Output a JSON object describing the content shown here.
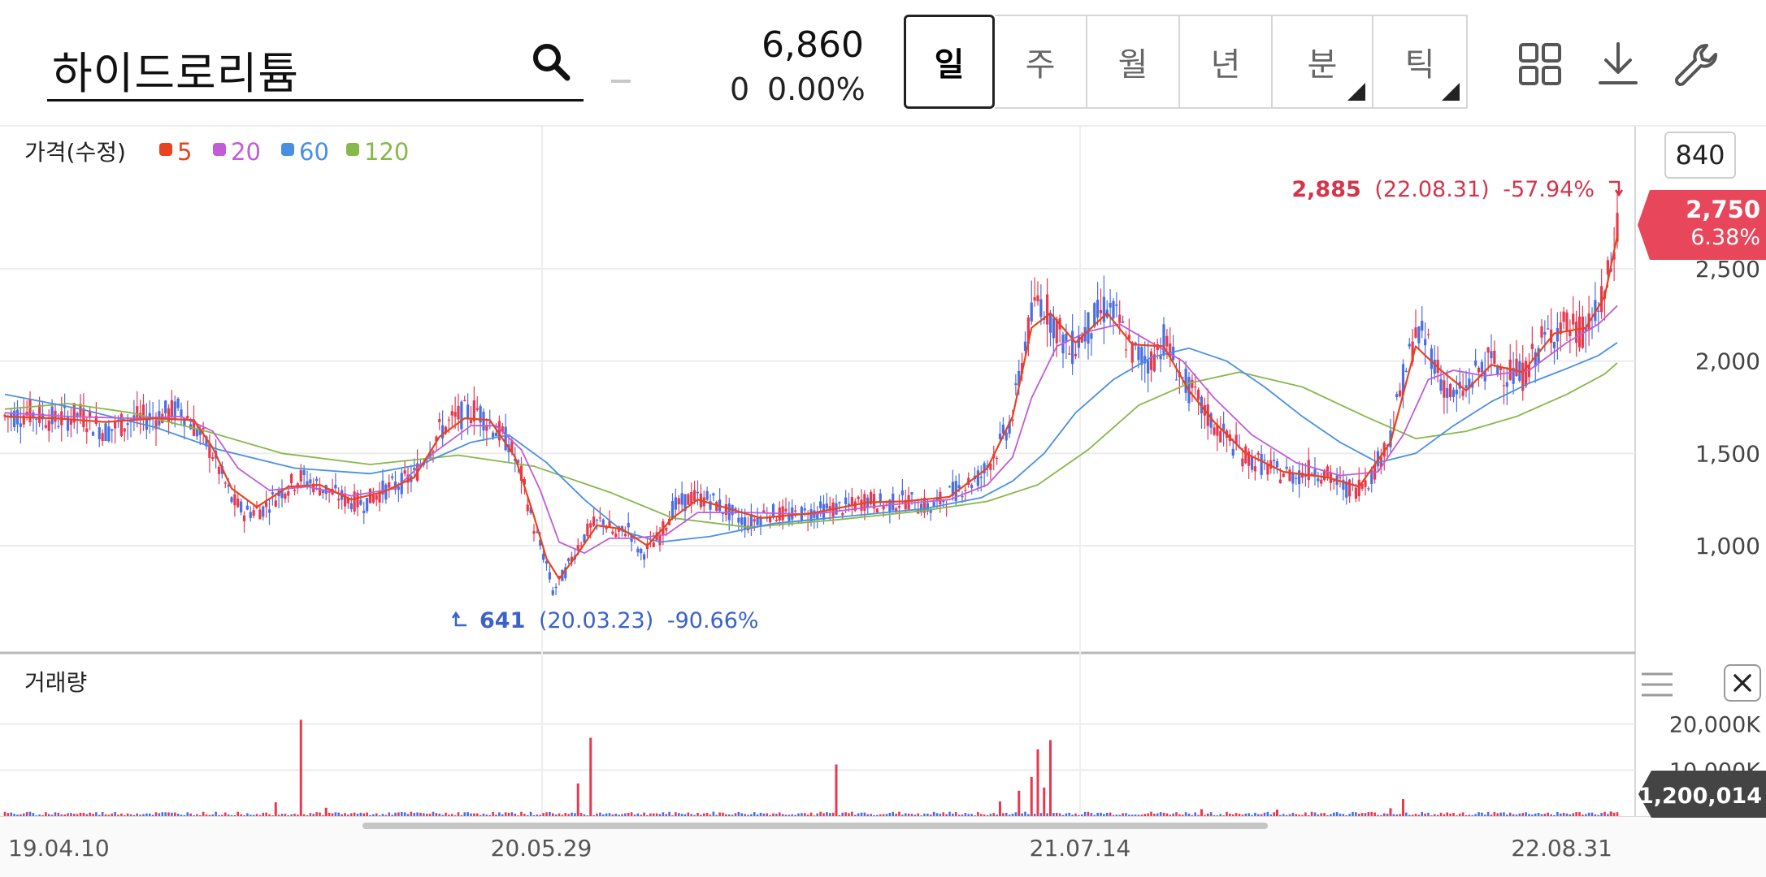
{
  "search": {
    "query": "하이드로리튬"
  },
  "quote": {
    "price": "6,860",
    "change": "0",
    "change_pct": "0.00%"
  },
  "periods": [
    {
      "label": "일",
      "active": true,
      "corner": false
    },
    {
      "label": "주",
      "active": false,
      "corner": false
    },
    {
      "label": "월",
      "active": false,
      "corner": false
    },
    {
      "label": "년",
      "active": false,
      "corner": false
    },
    {
      "label": "분",
      "active": false,
      "corner": true
    },
    {
      "label": "틱",
      "active": false,
      "corner": true
    }
  ],
  "toolbar": {
    "icons": [
      "grid-icon",
      "download-icon",
      "wrench-icon"
    ]
  },
  "overlay_button": {
    "label": "840"
  },
  "colors": {
    "up": "#e8384f",
    "down": "#4a6fe0",
    "ma5": "#e8431e",
    "ma20": "#c15bd6",
    "ma60": "#4a90e2",
    "ma120": "#86b84a",
    "price_tag": "#e8465a",
    "volume_tag": "#444444"
  },
  "chart_data": {
    "type": "candlestick",
    "price_panel": {
      "title": "가격(수정)",
      "y_ticks": [
        "2,500",
        "2,000",
        "1,500",
        "1,000"
      ],
      "ylim": [
        700,
        2950
      ],
      "legend": [
        {
          "name": "5",
          "color": "#e8431e"
        },
        {
          "name": "20",
          "color": "#c15bd6"
        },
        {
          "name": "60",
          "color": "#4a90e2"
        },
        {
          "name": "120",
          "color": "#86b84a"
        }
      ],
      "current_price": {
        "value": "2,750",
        "pct": "6.38%"
      },
      "high_annotation": {
        "value": "2,885",
        "date": "(22.08.31)",
        "pct": "-57.94%"
      },
      "low_annotation": {
        "value": "641",
        "date": "(20.03.23)",
        "pct": "-90.66%"
      },
      "close_path_points": [
        [
          0,
          1700
        ],
        [
          4,
          1720
        ],
        [
          8,
          1680
        ],
        [
          12,
          1710
        ],
        [
          16,
          1620
        ],
        [
          20,
          1680
        ],
        [
          24,
          1700
        ],
        [
          28,
          1740
        ],
        [
          30,
          1650
        ],
        [
          33,
          1500
        ],
        [
          36,
          1250
        ],
        [
          38,
          1180
        ],
        [
          41,
          1200
        ],
        [
          44,
          1300
        ],
        [
          47,
          1370
        ],
        [
          50,
          1320
        ],
        [
          54,
          1250
        ],
        [
          57,
          1230
        ],
        [
          60,
          1300
        ],
        [
          63,
          1340
        ],
        [
          65,
          1380
        ],
        [
          67,
          1500
        ],
        [
          69,
          1620
        ],
        [
          72,
          1700
        ],
        [
          75,
          1740
        ],
        [
          77,
          1660
        ],
        [
          80,
          1560
        ],
        [
          82,
          1380
        ],
        [
          84,
          1100
        ],
        [
          86,
          900
        ],
        [
          87,
          750
        ],
        [
          89,
          860
        ],
        [
          91,
          1000
        ],
        [
          93,
          1100
        ],
        [
          95,
          1140
        ],
        [
          97,
          1050
        ],
        [
          99,
          1100
        ],
        [
          101,
          950
        ],
        [
          104,
          1050
        ],
        [
          106,
          1200
        ],
        [
          109,
          1260
        ],
        [
          112,
          1250
        ],
        [
          115,
          1180
        ],
        [
          118,
          1120
        ],
        [
          121,
          1180
        ],
        [
          125,
          1160
        ],
        [
          128,
          1180
        ],
        [
          131,
          1200
        ],
        [
          134,
          1210
        ],
        [
          137,
          1250
        ],
        [
          140,
          1220
        ],
        [
          143,
          1250
        ],
        [
          147,
          1200
        ],
        [
          150,
          1280
        ],
        [
          155,
          1380
        ],
        [
          158,
          1550
        ],
        [
          160,
          1700
        ],
        [
          162,
          2100
        ],
        [
          164,
          2350
        ],
        [
          166,
          2250
        ],
        [
          169,
          2050
        ],
        [
          172,
          2180
        ],
        [
          175,
          2300
        ],
        [
          177,
          2200
        ],
        [
          179,
          2050
        ],
        [
          182,
          2000
        ],
        [
          184,
          2120
        ],
        [
          187,
          1900
        ],
        [
          190,
          1750
        ],
        [
          192,
          1650
        ],
        [
          195,
          1550
        ],
        [
          197,
          1480
        ],
        [
          199,
          1450
        ],
        [
          202,
          1400
        ],
        [
          205,
          1380
        ],
        [
          208,
          1420
        ],
        [
          211,
          1350
        ],
        [
          214,
          1300
        ],
        [
          217,
          1380
        ],
        [
          220,
          1600
        ],
        [
          222,
          1900
        ],
        [
          224,
          2150
        ],
        [
          226,
          2100
        ],
        [
          228,
          1900
        ],
        [
          230,
          1800
        ],
        [
          232,
          1850
        ],
        [
          234,
          1950
        ],
        [
          236,
          2000
        ],
        [
          238,
          1950
        ],
        [
          241,
          1920
        ],
        [
          244,
          2100
        ],
        [
          247,
          2200
        ],
        [
          250,
          2150
        ],
        [
          253,
          2250
        ],
        [
          255,
          2500
        ],
        [
          256,
          2750
        ]
      ],
      "ma5": [
        [
          0,
          1700
        ],
        [
          8,
          1690
        ],
        [
          16,
          1670
        ],
        [
          24,
          1690
        ],
        [
          30,
          1680
        ],
        [
          33,
          1530
        ],
        [
          36,
          1310
        ],
        [
          40,
          1210
        ],
        [
          45,
          1320
        ],
        [
          50,
          1330
        ],
        [
          55,
          1250
        ],
        [
          60,
          1290
        ],
        [
          65,
          1370
        ],
        [
          69,
          1590
        ],
        [
          73,
          1690
        ],
        [
          77,
          1680
        ],
        [
          81,
          1480
        ],
        [
          84,
          1160
        ],
        [
          86,
          930
        ],
        [
          88,
          820
        ],
        [
          91,
          960
        ],
        [
          94,
          1110
        ],
        [
          98,
          1090
        ],
        [
          102,
          1000
        ],
        [
          106,
          1150
        ],
        [
          110,
          1250
        ],
        [
          115,
          1200
        ],
        [
          120,
          1150
        ],
        [
          128,
          1175
        ],
        [
          137,
          1235
        ],
        [
          143,
          1240
        ],
        [
          150,
          1265
        ],
        [
          156,
          1420
        ],
        [
          160,
          1700
        ],
        [
          163,
          2180
        ],
        [
          166,
          2260
        ],
        [
          170,
          2100
        ],
        [
          175,
          2260
        ],
        [
          179,
          2090
        ],
        [
          184,
          2080
        ],
        [
          188,
          1840
        ],
        [
          192,
          1670
        ],
        [
          197,
          1500
        ],
        [
          203,
          1400
        ],
        [
          210,
          1370
        ],
        [
          215,
          1320
        ],
        [
          220,
          1560
        ],
        [
          224,
          2080
        ],
        [
          228,
          1950
        ],
        [
          232,
          1840
        ],
        [
          236,
          1980
        ],
        [
          241,
          1940
        ],
        [
          246,
          2150
        ],
        [
          251,
          2180
        ],
        [
          254,
          2350
        ],
        [
          256,
          2680
        ]
      ],
      "ma20": [
        [
          0,
          1720
        ],
        [
          10,
          1700
        ],
        [
          20,
          1690
        ],
        [
          28,
          1700
        ],
        [
          33,
          1620
        ],
        [
          37,
          1420
        ],
        [
          42,
          1300
        ],
        [
          48,
          1320
        ],
        [
          55,
          1270
        ],
        [
          62,
          1310
        ],
        [
          68,
          1500
        ],
        [
          74,
          1650
        ],
        [
          78,
          1650
        ],
        [
          82,
          1520
        ],
        [
          85,
          1300
        ],
        [
          88,
          1020
        ],
        [
          92,
          960
        ],
        [
          96,
          1040
        ],
        [
          100,
          1040
        ],
        [
          105,
          1060
        ],
        [
          110,
          1180
        ],
        [
          118,
          1180
        ],
        [
          128,
          1170
        ],
        [
          140,
          1220
        ],
        [
          150,
          1250
        ],
        [
          156,
          1330
        ],
        [
          160,
          1480
        ],
        [
          163,
          1800
        ],
        [
          167,
          2080
        ],
        [
          172,
          2160
        ],
        [
          177,
          2200
        ],
        [
          182,
          2100
        ],
        [
          187,
          2000
        ],
        [
          192,
          1800
        ],
        [
          198,
          1600
        ],
        [
          205,
          1450
        ],
        [
          212,
          1380
        ],
        [
          218,
          1400
        ],
        [
          222,
          1600
        ],
        [
          226,
          1900
        ],
        [
          230,
          1950
        ],
        [
          235,
          1920
        ],
        [
          242,
          1950
        ],
        [
          248,
          2100
        ],
        [
          253,
          2200
        ],
        [
          256,
          2300
        ]
      ],
      "ma60": [
        [
          0,
          1820
        ],
        [
          12,
          1740
        ],
        [
          24,
          1640
        ],
        [
          34,
          1520
        ],
        [
          46,
          1420
        ],
        [
          58,
          1390
        ],
        [
          66,
          1440
        ],
        [
          74,
          1560
        ],
        [
          80,
          1600
        ],
        [
          86,
          1450
        ],
        [
          92,
          1250
        ],
        [
          98,
          1080
        ],
        [
          104,
          1020
        ],
        [
          112,
          1050
        ],
        [
          122,
          1120
        ],
        [
          134,
          1160
        ],
        [
          146,
          1200
        ],
        [
          155,
          1260
        ],
        [
          160,
          1350
        ],
        [
          165,
          1500
        ],
        [
          170,
          1720
        ],
        [
          176,
          1900
        ],
        [
          182,
          2020
        ],
        [
          188,
          2070
        ],
        [
          194,
          2000
        ],
        [
          200,
          1860
        ],
        [
          206,
          1700
        ],
        [
          212,
          1560
        ],
        [
          218,
          1450
        ],
        [
          224,
          1500
        ],
        [
          230,
          1650
        ],
        [
          236,
          1780
        ],
        [
          242,
          1880
        ],
        [
          248,
          1960
        ],
        [
          253,
          2030
        ],
        [
          256,
          2100
        ]
      ],
      "ma120": [
        [
          0,
          1740
        ],
        [
          10,
          1770
        ],
        [
          20,
          1720
        ],
        [
          32,
          1620
        ],
        [
          44,
          1500
        ],
        [
          58,
          1440
        ],
        [
          72,
          1490
        ],
        [
          84,
          1430
        ],
        [
          96,
          1290
        ],
        [
          106,
          1150
        ],
        [
          118,
          1100
        ],
        [
          132,
          1140
        ],
        [
          146,
          1190
        ],
        [
          156,
          1240
        ],
        [
          164,
          1330
        ],
        [
          172,
          1520
        ],
        [
          180,
          1760
        ],
        [
          188,
          1880
        ],
        [
          196,
          1940
        ],
        [
          206,
          1860
        ],
        [
          216,
          1700
        ],
        [
          224,
          1580
        ],
        [
          232,
          1620
        ],
        [
          240,
          1700
        ],
        [
          248,
          1820
        ],
        [
          254,
          1930
        ],
        [
          256,
          1990
        ]
      ]
    },
    "volume_panel": {
      "title": "거래량",
      "y_ticks": [
        "20,000K",
        "10,000K"
      ],
      "ylim": [
        0,
        22000
      ],
      "current_volume": "1,200,014",
      "spikes": [
        [
          47,
          20900
        ],
        [
          43,
          3000
        ],
        [
          51,
          1800
        ],
        [
          91,
          7100
        ],
        [
          93,
          17000
        ],
        [
          132,
          11200
        ],
        [
          158,
          3200
        ],
        [
          161,
          5500
        ],
        [
          163,
          8500
        ],
        [
          164,
          14500
        ],
        [
          165,
          6200
        ],
        [
          166,
          16500
        ],
        [
          190,
          1500
        ],
        [
          202,
          1400
        ],
        [
          222,
          3700
        ],
        [
          220,
          1700
        ],
        [
          255,
          1000
        ]
      ]
    },
    "x_ticks": [
      "19.04.10",
      "20.05.29",
      "21.07.14",
      "22.08.31"
    ]
  }
}
